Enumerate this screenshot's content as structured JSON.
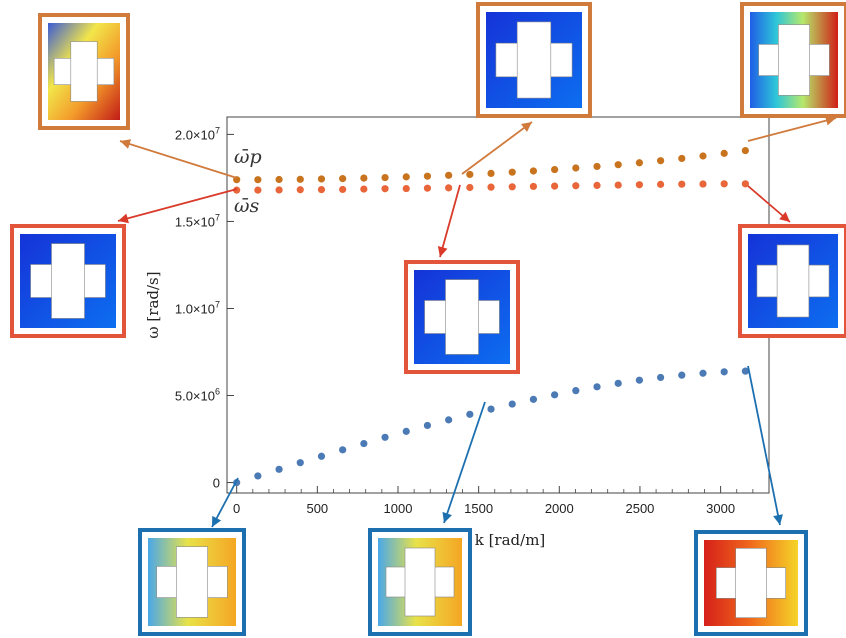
{
  "chart_data": {
    "type": "scatter",
    "xlabel": "k [rad/m]",
    "ylabel": "ω [rad/s]",
    "xlim": [
      -60,
      3300
    ],
    "ylim": [
      -600000,
      21000000
    ],
    "x_ticks": [
      0,
      500,
      1000,
      1500,
      2000,
      2500,
      3000
    ],
    "x_tick_labels": [
      "0",
      "500",
      "1000",
      "1500",
      "2000",
      "2500",
      "3000"
    ],
    "y_ticks": [
      0,
      5000000,
      10000000,
      15000000,
      20000000
    ],
    "y_tick_labels": [
      "0",
      "5.0×10^6",
      "1.0×10^7",
      "1.5×10^7",
      "2.0×10^7"
    ],
    "grid": false,
    "annotations": [
      {
        "text": "ω̄p",
        "target_series": "upper"
      },
      {
        "text": "ω̄s",
        "target_series": "middle"
      }
    ],
    "series": [
      {
        "color": "#C8731E",
        "x": [
          0,
          131.4,
          262.8,
          394.2,
          525.6,
          657,
          788.4,
          919.8,
          1051.2,
          1182.6,
          1314,
          1445.4,
          1576.8,
          1708.2,
          1839.6,
          1971,
          2102.4,
          2233.8,
          2365.2,
          2496.6,
          2628,
          2759.4,
          2890.8,
          3022.2,
          3153.6
        ],
        "y": [
          17400000,
          17400000,
          17410000,
          17420000,
          17440000,
          17460000,
          17490000,
          17520000,
          17560000,
          17600000,
          17650000,
          17700000,
          17760000,
          17830000,
          17900000,
          17980000,
          18070000,
          18160000,
          18260000,
          18370000,
          18490000,
          18620000,
          18760000,
          18910000,
          19070000
        ]
      },
      {
        "color": "#E8663A",
        "x": [
          0,
          131.4,
          262.8,
          394.2,
          525.6,
          657,
          788.4,
          919.8,
          1051.2,
          1182.6,
          1314,
          1445.4,
          1576.8,
          1708.2,
          1839.6,
          1971,
          2102.4,
          2233.8,
          2365.2,
          2496.6,
          2628,
          2759.4,
          2890.8,
          3022.2,
          3153.6
        ],
        "y": [
          16800000,
          16800000,
          16810000,
          16820000,
          16830000,
          16840000,
          16860000,
          16880000,
          16890000,
          16910000,
          16930000,
          16950000,
          16970000,
          16990000,
          17010000,
          17030000,
          17050000,
          17070000,
          17090000,
          17110000,
          17130000,
          17140000,
          17150000,
          17160000,
          17160000
        ]
      },
      {
        "color": "#4B7AB5",
        "x": [
          0,
          131.4,
          262.8,
          394.2,
          525.6,
          657,
          788.4,
          919.8,
          1051.2,
          1182.6,
          1314,
          1445.4,
          1576.8,
          1708.2,
          1839.6,
          1971,
          2102.4,
          2233.8,
          2365.2,
          2496.6,
          2628,
          2759.4,
          2890.8,
          3022.2,
          3153.6
        ],
        "y": [
          0,
          380000,
          760000,
          1140000,
          1510000,
          1880000,
          2240000,
          2600000,
          2940000,
          3280000,
          3600000,
          3920000,
          4220000,
          4510000,
          4780000,
          5040000,
          5280000,
          5500000,
          5700000,
          5880000,
          6040000,
          6170000,
          6280000,
          6360000,
          6400000
        ]
      }
    ],
    "mode_shapes": [
      {
        "name": "p-mode at k=0",
        "palette": "warm-orange"
      },
      {
        "name": "p-mode at k=1400",
        "palette": "blue-red"
      },
      {
        "name": "p-mode at k=3150",
        "palette": "green-teal"
      },
      {
        "name": "s-mode at k=0",
        "palette": "blue-red"
      },
      {
        "name": "s-mode at k=1400",
        "palette": "blue-red"
      },
      {
        "name": "s-mode at k=3150",
        "palette": "blue-red"
      },
      {
        "name": "acoustic mode at k=0",
        "palette": "teal-yellow"
      },
      {
        "name": "acoustic mode at k=1500",
        "palette": "teal-yellow"
      },
      {
        "name": "acoustic mode at k=3150",
        "palette": "red-yellow"
      }
    ]
  }
}
